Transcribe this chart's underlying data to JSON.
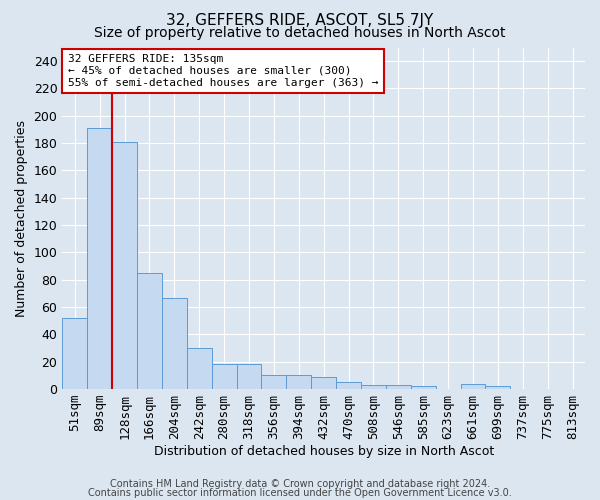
{
  "title1": "32, GEFFERS RIDE, ASCOT, SL5 7JY",
  "title2": "Size of property relative to detached houses in North Ascot",
  "xlabel": "Distribution of detached houses by size in North Ascot",
  "ylabel": "Number of detached properties",
  "categories": [
    "51sqm",
    "89sqm",
    "128sqm",
    "166sqm",
    "204sqm",
    "242sqm",
    "280sqm",
    "318sqm",
    "356sqm",
    "394sqm",
    "432sqm",
    "470sqm",
    "508sqm",
    "546sqm",
    "585sqm",
    "623sqm",
    "661sqm",
    "699sqm",
    "737sqm",
    "775sqm",
    "813sqm"
  ],
  "values": [
    52,
    191,
    181,
    85,
    67,
    30,
    18,
    18,
    10,
    10,
    9,
    5,
    3,
    3,
    2,
    0,
    4,
    2,
    0,
    0,
    0
  ],
  "bar_color": "#c5d9f0",
  "bar_edge_color": "#5b9bd5",
  "bg_color": "#dce6f1",
  "grid_color": "#ffffff",
  "annotation_line1": "32 GEFFERS RIDE: 135sqm",
  "annotation_line2": "← 45% of detached houses are smaller (300)",
  "annotation_line3": "55% of semi-detached houses are larger (363) →",
  "annotation_box_edge": "#cc0000",
  "annotation_box_bg": "#ffffff",
  "redline_x": 2.0,
  "ylim": [
    0,
    250
  ],
  "yticks": [
    0,
    20,
    40,
    60,
    80,
    100,
    120,
    140,
    160,
    180,
    200,
    220,
    240
  ],
  "footer1": "Contains HM Land Registry data © Crown copyright and database right 2024.",
  "footer2": "Contains public sector information licensed under the Open Government Licence v3.0.",
  "title1_fontsize": 11,
  "title2_fontsize": 10,
  "xlabel_fontsize": 9,
  "ylabel_fontsize": 9,
  "annotation_fontsize": 8,
  "footer_fontsize": 7
}
